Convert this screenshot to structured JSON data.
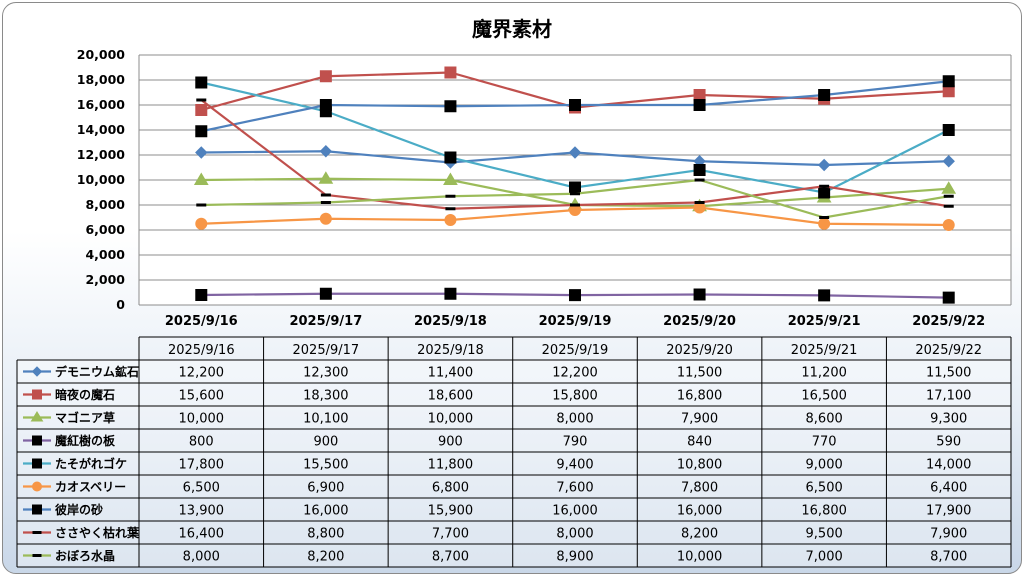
{
  "chart_data": {
    "type": "line",
    "title": "魔界素材",
    "x": [
      "2025/9/16",
      "2025/9/17",
      "2025/9/18",
      "2025/9/19",
      "2025/9/20",
      "2025/9/21",
      "2025/9/22"
    ],
    "ylim": [
      0,
      20000
    ],
    "yticks": [
      "0",
      "2,000",
      "4,000",
      "6,000",
      "8,000",
      "10,000",
      "12,000",
      "14,000",
      "16,000",
      "18,000",
      "20,000"
    ],
    "grid": true,
    "legend": "data-table-bottom",
    "series": [
      {
        "name": "デモニウム鉱石",
        "color": "#4f81bd",
        "marker": "diamond",
        "values": [
          12200,
          12300,
          11400,
          12200,
          11500,
          11200,
          11500
        ],
        "labels": [
          "12,200",
          "12,300",
          "11,400",
          "12,200",
          "11,500",
          "11,200",
          "11,500"
        ]
      },
      {
        "name": "暗夜の魔石",
        "color": "#c0504d",
        "marker": "square",
        "values": [
          15600,
          18300,
          18600,
          15800,
          16800,
          16500,
          17100
        ],
        "labels": [
          "15,600",
          "18,300",
          "18,600",
          "15,800",
          "16,800",
          "16,500",
          "17,100"
        ]
      },
      {
        "name": "マゴニア草",
        "color": "#9bbb59",
        "marker": "triangle",
        "values": [
          10000,
          10100,
          10000,
          8000,
          7900,
          8600,
          9300
        ],
        "labels": [
          "10,000",
          "10,100",
          "10,000",
          "8,000",
          "7,900",
          "8,600",
          "9,300"
        ]
      },
      {
        "name": "魔紅樹の板",
        "color": "#8064a2",
        "marker": "blacksquare",
        "values": [
          800,
          900,
          900,
          790,
          840,
          770,
          590
        ],
        "labels": [
          "800",
          "900",
          "900",
          "790",
          "840",
          "770",
          "590"
        ]
      },
      {
        "name": "たそがれゴケ",
        "color": "#4bacc6",
        "marker": "blacksquare",
        "values": [
          17800,
          15500,
          11800,
          9400,
          10800,
          9000,
          14000
        ],
        "labels": [
          "17,800",
          "15,500",
          "11,800",
          "9,400",
          "10,800",
          "9,000",
          "14,000"
        ]
      },
      {
        "name": "カオスベリー",
        "color": "#f79646",
        "marker": "circle",
        "values": [
          6500,
          6900,
          6800,
          7600,
          7800,
          6500,
          6400
        ],
        "labels": [
          "6,500",
          "6,900",
          "6,800",
          "7,600",
          "7,800",
          "6,500",
          "6,400"
        ]
      },
      {
        "name": "彼岸の砂",
        "color": "#4f81bd",
        "marker": "blacksquare",
        "values": [
          13900,
          16000,
          15900,
          16000,
          16000,
          16800,
          17900
        ],
        "labels": [
          "13,900",
          "16,000",
          "15,900",
          "16,000",
          "16,000",
          "16,800",
          "17,900"
        ]
      },
      {
        "name": "ささやく枯れ葉",
        "color": "#c0504d",
        "marker": "dash",
        "values": [
          16400,
          8800,
          7700,
          8000,
          8200,
          9500,
          7900
        ],
        "labels": [
          "16,400",
          "8,800",
          "7,700",
          "8,000",
          "8,200",
          "9,500",
          "7,900"
        ]
      },
      {
        "name": "おぼろ水晶",
        "color": "#9bbb59",
        "marker": "dash",
        "values": [
          8000,
          8200,
          8700,
          8900,
          10000,
          7000,
          8700
        ],
        "labels": [
          "8,000",
          "8,200",
          "8,700",
          "8,900",
          "10,000",
          "7,000",
          "8,700"
        ]
      }
    ]
  }
}
